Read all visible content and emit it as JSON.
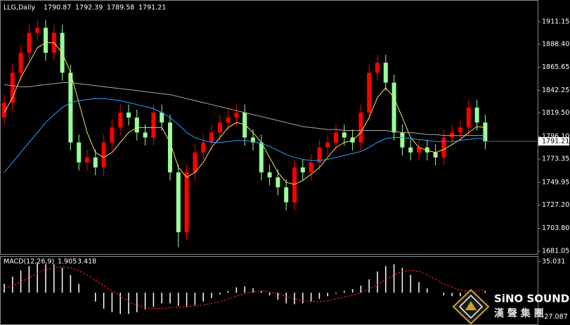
{
  "chart_data": [
    {
      "type": "candlestick",
      "title": "LLG,Daily",
      "header_values": [
        1790.87,
        1792.39,
        1789.58,
        1791.21
      ],
      "up_color": "#ff0000",
      "down_color": "#9aff9a",
      "open": [
        1815,
        1830,
        1860,
        1880,
        1900,
        1905,
        1880,
        1900,
        1860,
        1790,
        1770,
        1775,
        1765,
        1790,
        1805,
        1820,
        1815,
        1800,
        1795,
        1820,
        1810,
        1760,
        1700,
        1760,
        1780,
        1790,
        1800,
        1810,
        1815,
        1820,
        1795,
        1790,
        1760,
        1755,
        1745,
        1730,
        1765,
        1760,
        1770,
        1785,
        1790,
        1800,
        1795,
        1790,
        1820,
        1860,
        1870,
        1850,
        1800,
        1785,
        1780,
        1785,
        1780,
        1775,
        1795,
        1800,
        1805,
        1825,
        1810
      ],
      "high": [
        1838,
        1868,
        1888,
        1908,
        1913,
        1913,
        1908,
        1908,
        1868,
        1798,
        1783,
        1783,
        1798,
        1813,
        1828,
        1828,
        1823,
        1808,
        1828,
        1828,
        1818,
        1768,
        1768,
        1788,
        1798,
        1808,
        1818,
        1823,
        1828,
        1828,
        1803,
        1798,
        1768,
        1763,
        1753,
        1773,
        1773,
        1778,
        1793,
        1798,
        1808,
        1808,
        1803,
        1828,
        1868,
        1878,
        1878,
        1858,
        1808,
        1793,
        1793,
        1793,
        1788,
        1803,
        1808,
        1813,
        1833,
        1833,
        1818
      ],
      "low": [
        1807,
        1822,
        1852,
        1872,
        1892,
        1872,
        1872,
        1852,
        1782,
        1762,
        1762,
        1757,
        1757,
        1782,
        1797,
        1807,
        1792,
        1787,
        1787,
        1802,
        1752,
        1685,
        1692,
        1752,
        1772,
        1782,
        1792,
        1802,
        1807,
        1787,
        1782,
        1752,
        1747,
        1737,
        1722,
        1722,
        1752,
        1752,
        1762,
        1777,
        1782,
        1787,
        1782,
        1782,
        1812,
        1852,
        1842,
        1792,
        1777,
        1772,
        1772,
        1772,
        1767,
        1767,
        1787,
        1792,
        1797,
        1802,
        1783
      ],
      "close": [
        1830,
        1860,
        1880,
        1900,
        1905,
        1880,
        1900,
        1860,
        1790,
        1770,
        1775,
        1765,
        1790,
        1805,
        1820,
        1815,
        1800,
        1795,
        1820,
        1810,
        1760,
        1700,
        1760,
        1780,
        1790,
        1800,
        1810,
        1815,
        1820,
        1795,
        1790,
        1760,
        1755,
        1745,
        1730,
        1765,
        1760,
        1770,
        1785,
        1790,
        1800,
        1795,
        1790,
        1820,
        1860,
        1870,
        1850,
        1800,
        1785,
        1780,
        1785,
        1780,
        1775,
        1795,
        1800,
        1805,
        1825,
        1810,
        1791.21
      ],
      "series": [
        {
          "color": "#f0e060",
          "values": [
            1820,
            1835,
            1855,
            1870,
            1885,
            1890,
            1890,
            1880,
            1860,
            1830,
            1800,
            1780,
            1775,
            1780,
            1790,
            1800,
            1805,
            1805,
            1805,
            1805,
            1790,
            1765,
            1755,
            1760,
            1770,
            1785,
            1795,
            1805,
            1810,
            1808,
            1800,
            1790,
            1775,
            1760,
            1750,
            1748,
            1752,
            1758,
            1765,
            1775,
            1785,
            1790,
            1792,
            1800,
            1815,
            1835,
            1845,
            1835,
            1815,
            1795,
            1785,
            1782,
            1780,
            1783,
            1788,
            1793,
            1800,
            1806,
            1805
          ]
        },
        {
          "color": "#2f9fff",
          "values": [
            1760,
            1770,
            1780,
            1790,
            1800,
            1810,
            1818,
            1825,
            1830,
            1832,
            1833,
            1834,
            1834,
            1833,
            1832,
            1830,
            1828,
            1826,
            1824,
            1820,
            1815,
            1808,
            1800,
            1795,
            1792,
            1790,
            1790,
            1791,
            1792,
            1792,
            1791,
            1789,
            1786,
            1782,
            1778,
            1775,
            1773,
            1772,
            1772,
            1773,
            1775,
            1777,
            1779,
            1781,
            1785,
            1790,
            1794,
            1795,
            1795,
            1794,
            1793,
            1792,
            1791,
            1791,
            1791,
            1792,
            1793,
            1794,
            1794
          ]
        },
        {
          "color": "#a8a8a8",
          "values": [
            1848,
            1847,
            1846,
            1846,
            1847,
            1848,
            1849,
            1850,
            1850,
            1849,
            1848,
            1847,
            1846,
            1845,
            1844,
            1843,
            1842,
            1841,
            1840,
            1839,
            1838,
            1836,
            1834,
            1832,
            1830,
            1828,
            1826,
            1824,
            1822,
            1820,
            1818,
            1816,
            1814,
            1812,
            1810,
            1808,
            1806,
            1805,
            1804,
            1803,
            1803,
            1802,
            1802,
            1802,
            1802,
            1802,
            1802,
            1801,
            1800,
            1800,
            1799,
            1798,
            1798,
            1797,
            1797,
            1797,
            1797,
            1797,
            1797
          ]
        }
      ],
      "ylim": [
        1678.2,
        1932.2
      ],
      "yticks": [
        1911.15,
        {
          "value": 1888.4,
          "label": "1888.40"
        },
        1865.65,
        1842.25,
        {
          "value": 1819.5,
          "label": "1819.50"
        },
        {
          "value": 1796.1,
          "label": "1796.10"
        },
        1773.35,
        1749.95,
        {
          "value": 1727.2,
          "label": "1727.20"
        },
        {
          "value": 1703.8,
          "label": "1703.80"
        },
        1681.05
      ]
    },
    {
      "type": "macd",
      "title": "MACD(12,26,9)",
      "histogram": {
        "color": "#ffffff",
        "values": [
          10,
          18,
          25,
          30,
          33,
          32,
          32,
          28,
          20,
          10,
          0,
          -10,
          -18,
          -22,
          -24,
          -24,
          -22,
          -19,
          -16,
          -12,
          -12,
          -15,
          -16,
          -14,
          -10,
          -6,
          -2,
          2,
          6,
          7,
          5,
          2,
          -3,
          -8,
          -12,
          -13,
          -12,
          -10,
          -7,
          -4,
          -1,
          2,
          4,
          8,
          15,
          24,
          30,
          32,
          28,
          20,
          12,
          5,
          0,
          -3,
          -4,
          -4,
          -2,
          0,
          1.905
        ]
      },
      "signal": {
        "color": "#ff2020",
        "values": [
          5,
          8,
          12,
          17,
          22,
          26,
          28,
          29,
          28,
          25,
          20,
          14,
          8,
          2,
          -4,
          -10,
          -14,
          -17,
          -18,
          -18,
          -17,
          -16,
          -16,
          -15,
          -14,
          -12,
          -10,
          -7,
          -4,
          -1,
          1,
          2,
          1,
          -1,
          -4,
          -7,
          -9,
          -10,
          -10,
          -9,
          -7,
          -5,
          -3,
          0,
          4,
          9,
          15,
          20,
          24,
          25,
          24,
          20,
          15,
          10,
          6,
          3,
          1,
          2,
          3.418
        ]
      },
      "ylim": [
        -35.6,
        40.5
      ],
      "yticks": [
        35.031,
        -27.087
      ]
    }
  ],
  "logo": {
    "name": "SiNO SOUND",
    "subtitle": "漢 聲 集 團"
  }
}
